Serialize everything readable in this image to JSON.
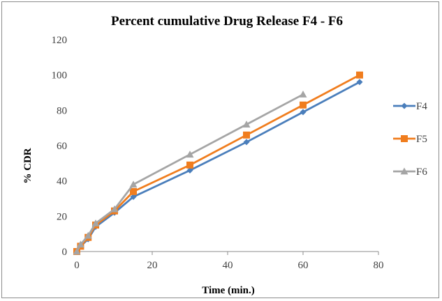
{
  "chart_data": {
    "type": "line",
    "title": "Percent cumulative  Drug Release F4 - F6",
    "xlabel": "Time (min.)",
    "ylabel": "% CDR",
    "xlim": [
      0,
      80
    ],
    "ylim": [
      0,
      120
    ],
    "x_ticks": [
      "0",
      "20",
      "40",
      "60",
      "80"
    ],
    "y_ticks": [
      "0",
      "20",
      "40",
      "60",
      "80",
      "100",
      "120"
    ],
    "grid": false,
    "legend_position": "right",
    "series": [
      {
        "name": "F4",
        "color": "#4a7ebb",
        "marker": "diamond",
        "x": [
          0,
          1,
          3,
          5,
          10,
          15,
          30,
          45,
          60,
          75
        ],
        "y": [
          0,
          3,
          7,
          14,
          22,
          31,
          46,
          62,
          79,
          96
        ]
      },
      {
        "name": "F5",
        "color": "#f07d1e",
        "marker": "square",
        "x": [
          0,
          1,
          3,
          5,
          10,
          15,
          30,
          45,
          60,
          75
        ],
        "y": [
          0,
          3,
          8,
          15,
          23,
          34,
          49,
          66,
          83,
          100
        ]
      },
      {
        "name": "F6",
        "color": "#a5a5a5",
        "marker": "triangle",
        "x": [
          0,
          1,
          3,
          5,
          10,
          15,
          30,
          45,
          60
        ],
        "y": [
          0,
          4,
          9,
          16,
          24,
          38,
          55,
          72,
          89
        ]
      }
    ]
  }
}
